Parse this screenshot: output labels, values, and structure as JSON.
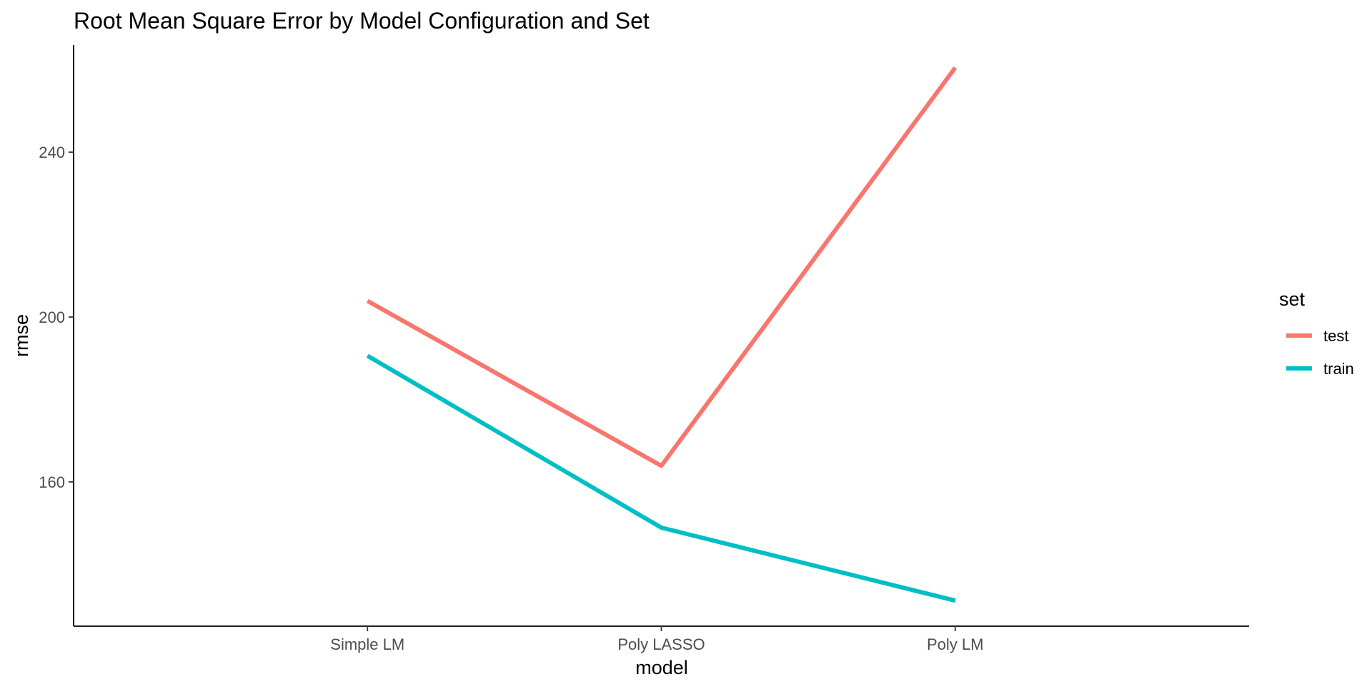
{
  "chart_data": {
    "type": "line",
    "title": "Root Mean Square Error by Model Configuration and Set",
    "xlabel": "model",
    "ylabel": "rmse",
    "categories": [
      "Simple LM",
      "Poly LASSO",
      "Poly LM"
    ],
    "yticks": [
      160,
      200,
      240
    ],
    "ylim": [
      125,
      266
    ],
    "grid": false,
    "legend": {
      "title": "set",
      "placement": "right"
    },
    "series": [
      {
        "name": "test",
        "color": "#F8766D",
        "values": [
          203.9,
          163.9,
          260.5
        ]
      },
      {
        "name": "train",
        "color": "#00BFC4",
        "values": [
          190.6,
          148.9,
          131.2
        ]
      }
    ]
  }
}
